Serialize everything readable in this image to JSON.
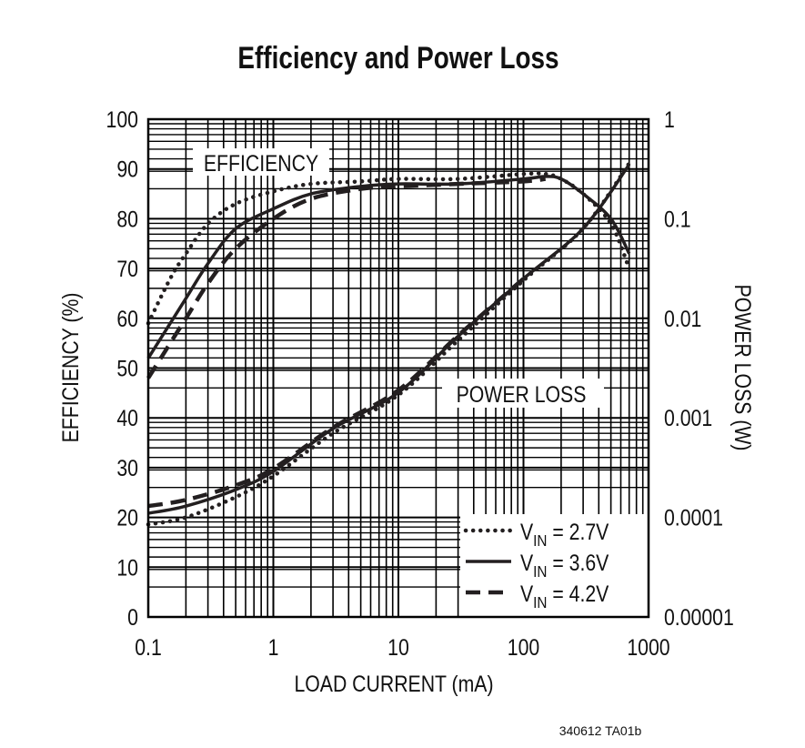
{
  "chart_data": {
    "type": "line",
    "title": "Efficiency and Power Loss",
    "xlabel": "LOAD CURRENT (mA)",
    "ylabel": "EFFICIENCY (%)",
    "y2label": "POWER LOSS (W)",
    "xscale": "log",
    "xlim": [
      0.1,
      1000
    ],
    "ylim": [
      0,
      100
    ],
    "y2scale": "log",
    "y2lim": [
      1e-05,
      1
    ],
    "xticks": [
      "0.1",
      "1",
      "10",
      "100",
      "1000"
    ],
    "yticks": [
      "0",
      "10",
      "20",
      "30",
      "40",
      "50",
      "60",
      "70",
      "80",
      "90",
      "100"
    ],
    "y2ticks": [
      "0.00001",
      "0.0001",
      "0.001",
      "0.01",
      "0.1",
      "1"
    ],
    "grid": true,
    "annotations": {
      "efficiency": "EFFICIENCY",
      "power_loss": "POWER LOSS"
    },
    "legend_placement": "bottom-right",
    "series": [
      {
        "name": "VIN = 2.7V",
        "sub_prefix": "V",
        "sub": "IN",
        "suffix": " = 2.7V",
        "style": "dotted",
        "efficiency": {
          "x": [
            0.1,
            0.15,
            0.2,
            0.3,
            0.5,
            1,
            2,
            5,
            10,
            30,
            100,
            150,
            200,
            300,
            500,
            700
          ],
          "y": [
            59,
            68,
            73,
            79,
            83,
            85.5,
            87,
            87.5,
            88,
            88,
            89,
            89,
            88,
            85,
            79,
            70
          ]
        },
        "power_loss": {
          "x": [
            0.1,
            0.2,
            0.5,
            1,
            3,
            10,
            30,
            100,
            300,
            700
          ],
          "y": [
            8.5e-05,
            0.0001,
            0.00016,
            0.00026,
            0.0007,
            0.0017,
            0.006,
            0.024,
            0.08,
            0.36
          ]
        }
      },
      {
        "name": "VIN = 3.6V",
        "sub_prefix": "V",
        "sub": "IN",
        "suffix": " = 3.6V",
        "style": "solid",
        "efficiency": {
          "x": [
            0.1,
            0.2,
            0.3,
            0.5,
            1,
            2,
            5,
            10,
            30,
            100,
            150,
            200,
            300,
            500,
            700
          ],
          "y": [
            52,
            64,
            71,
            78,
            82,
            85,
            86.5,
            87,
            87,
            88,
            88.5,
            88,
            85,
            80,
            73
          ]
        },
        "power_loss": {
          "x": [
            0.1,
            0.2,
            0.5,
            1,
            3,
            10,
            30,
            100,
            300,
            700
          ],
          "y": [
            0.00011,
            0.00013,
            0.00019,
            0.00029,
            0.00078,
            0.0018,
            0.0066,
            0.025,
            0.08,
            0.35
          ]
        }
      },
      {
        "name": "VIN = 4.2V",
        "sub_prefix": "V",
        "sub": "IN",
        "suffix": " = 4.2V",
        "style": "dashed",
        "efficiency": {
          "x": [
            0.1,
            0.2,
            0.3,
            0.5,
            1,
            2,
            5,
            10,
            30,
            100,
            150
          ],
          "y": [
            48,
            60,
            67,
            74,
            80,
            84,
            86,
            86.5,
            87,
            87.5,
            88
          ]
        },
        "power_loss": {
          "x": [
            0.1,
            0.2,
            0.5,
            1,
            3,
            10,
            30,
            100
          ],
          "y": [
            0.00013,
            0.00015,
            0.00021,
            0.00031,
            0.0008,
            0.0019,
            0.0067,
            0.025
          ]
        }
      }
    ]
  },
  "footer": "340612 TA01b"
}
